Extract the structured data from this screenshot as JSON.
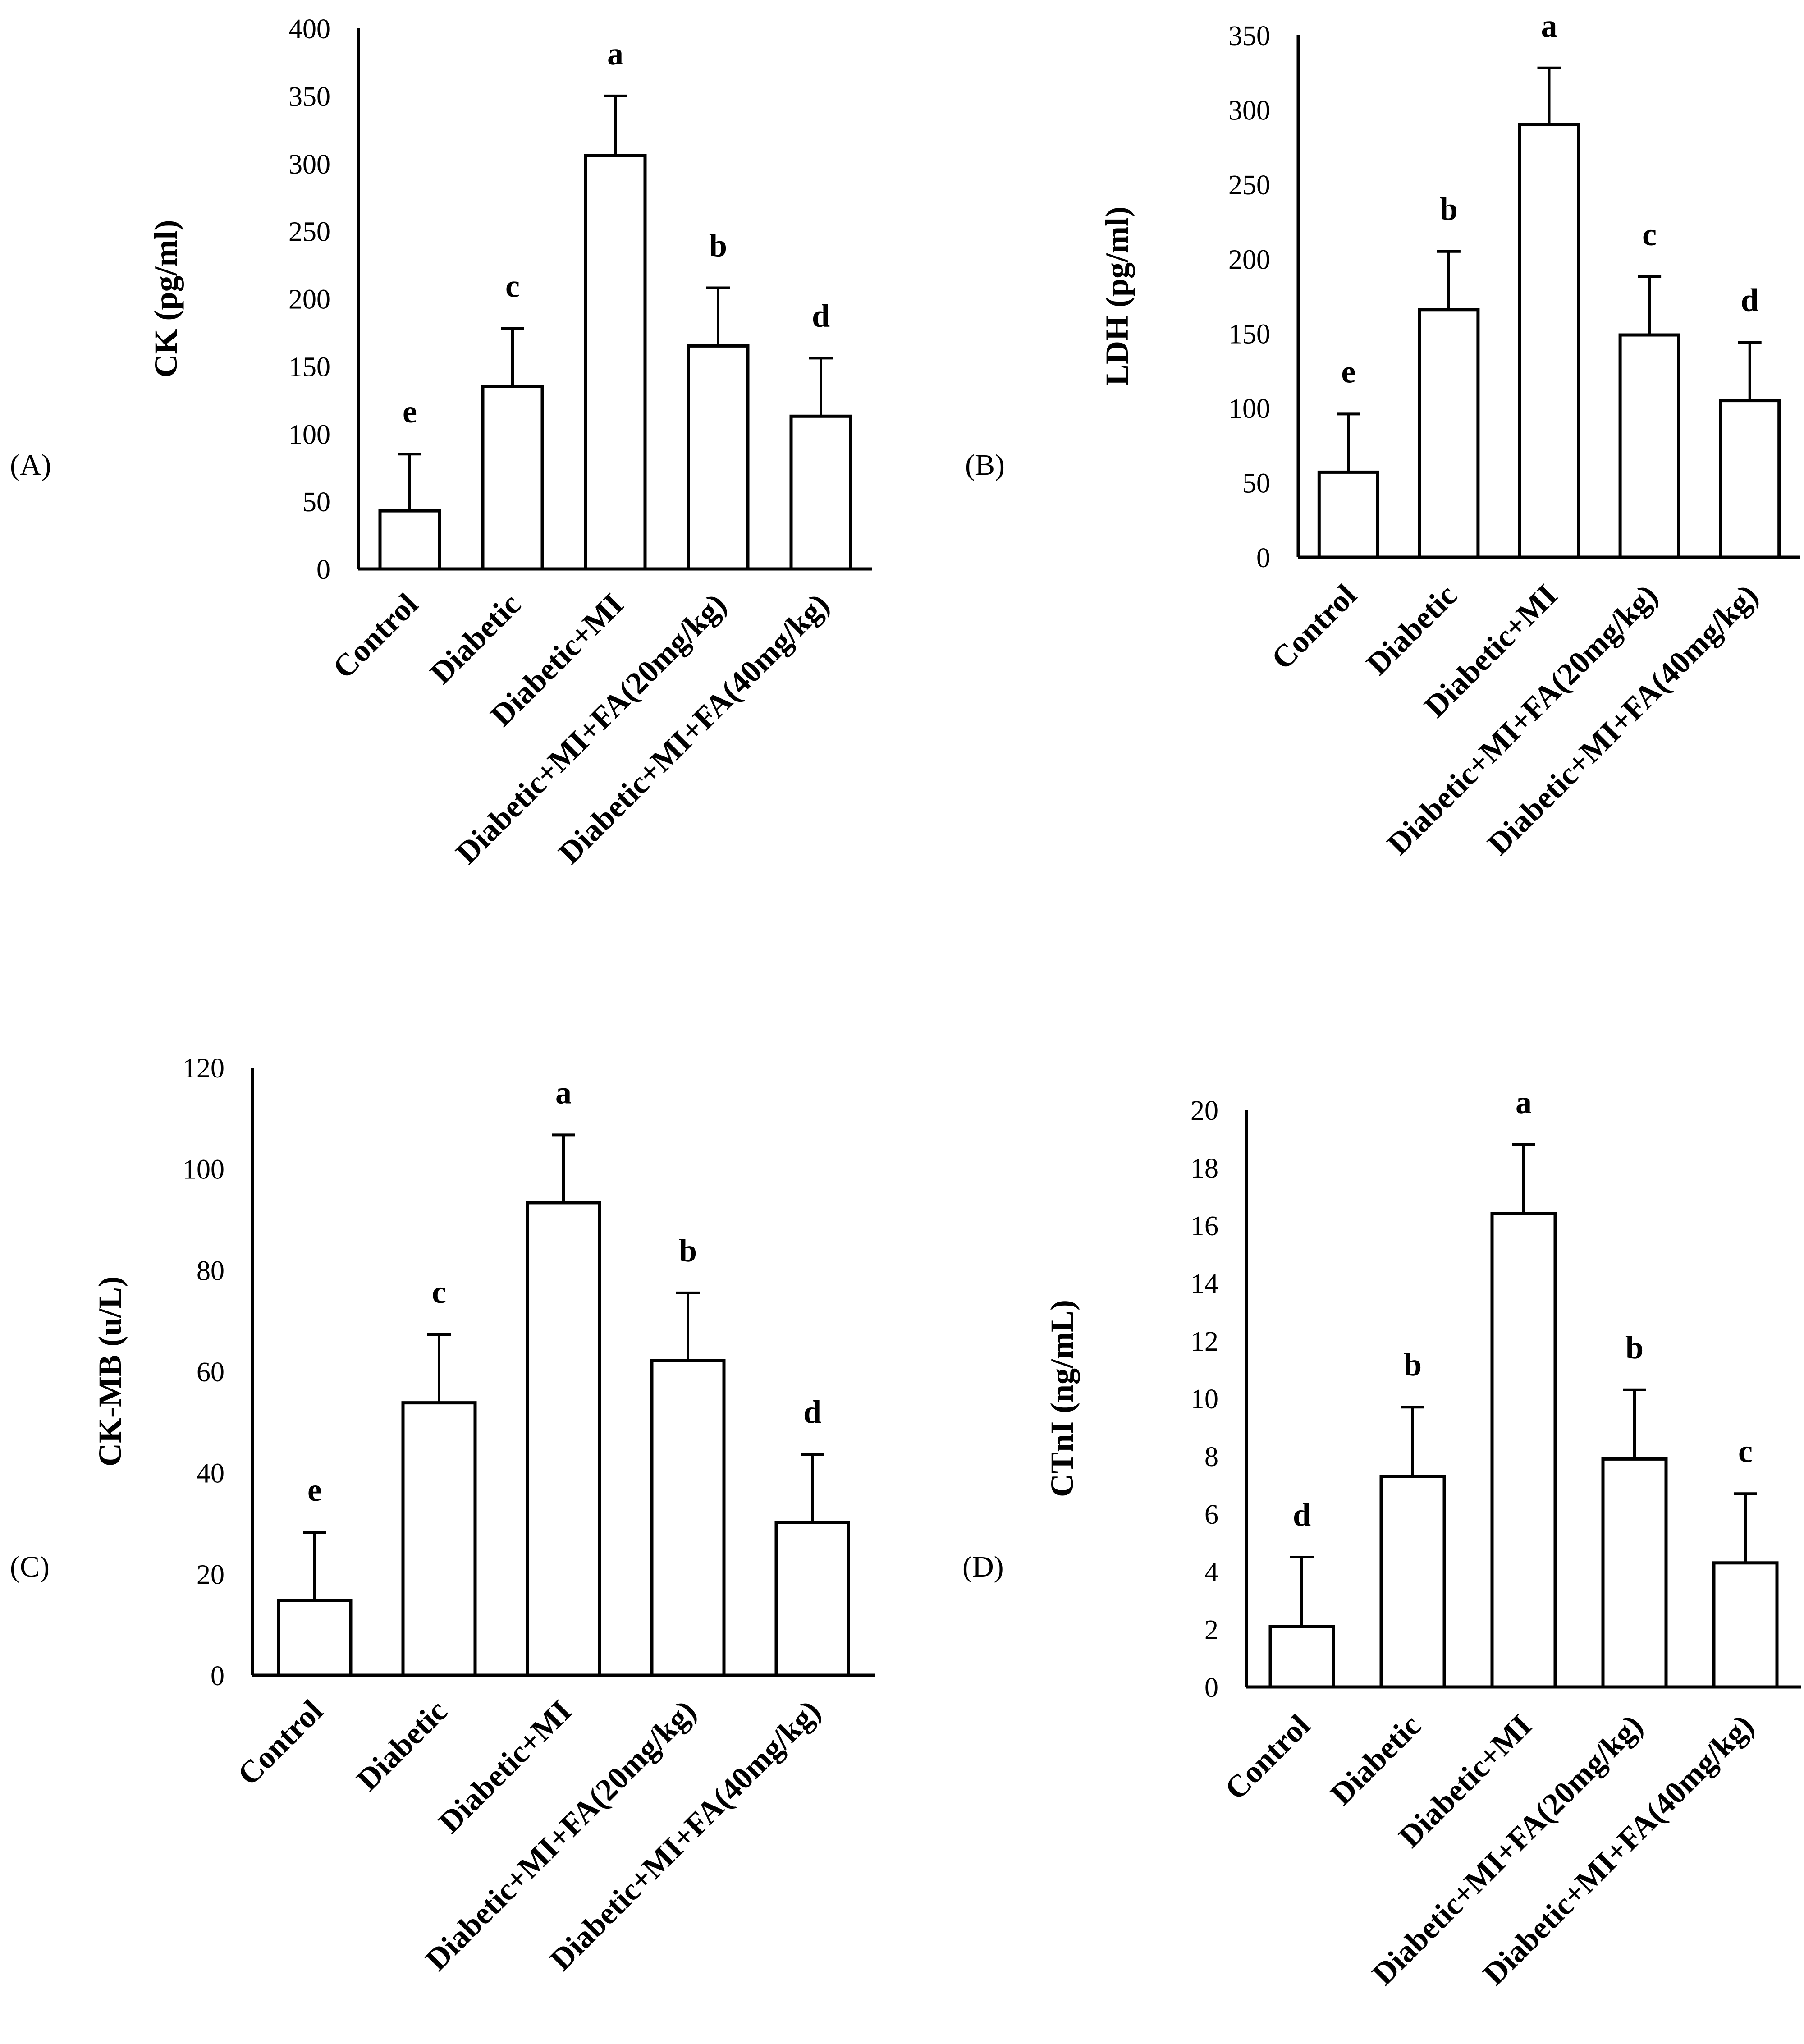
{
  "chart_data": [
    {
      "type": "bar",
      "panel": "(A)",
      "ylabel": "CK (pg/ml)",
      "ylim": [
        0,
        400
      ],
      "yticks": [
        "0",
        "50",
        "100",
        "150",
        "200",
        "250",
        "300",
        "350",
        "400"
      ],
      "categories": [
        "Control",
        "Diabetic",
        "Diabetic+MI",
        "Diabetic+MI+FA(20mg/kg)",
        "Diabetic+MI+FA(40mg/kg)"
      ],
      "values": [
        43,
        135,
        306,
        165,
        113
      ],
      "errors": [
        42,
        43,
        44,
        43,
        43
      ],
      "letters": [
        "e",
        "c",
        "a",
        "b",
        "d"
      ]
    },
    {
      "type": "bar",
      "panel": "(B)",
      "ylabel": "LDH (pg/ml)",
      "ylim": [
        0,
        350
      ],
      "yticks": [
        "0",
        "50",
        "100",
        "150",
        "200",
        "250",
        "300",
        "350"
      ],
      "categories": [
        "Control",
        "Diabetic",
        "Diabetic+MI",
        "Diabetic+MI+FA(20mg/kg)",
        "Diabetic+MI+FA(40mg/kg)"
      ],
      "values": [
        57,
        166,
        290,
        149,
        105
      ],
      "errors": [
        39,
        39,
        38,
        39,
        39
      ],
      "letters": [
        "e",
        "b",
        "a",
        "c",
        "d"
      ]
    },
    {
      "type": "bar",
      "panel": "(C)",
      "ylabel": "CK-MB (u/L)",
      "ylim": [
        0,
        120
      ],
      "yticks": [
        "0",
        "20",
        "40",
        "60",
        "80",
        "100",
        "120"
      ],
      "categories": [
        "Control",
        "Diabetic",
        "Diabetic+MI",
        "Diabetic+MI+FA(20mg/kg)",
        "Diabetic+MI+FA(40mg/kg)"
      ],
      "values": [
        14.8,
        53.8,
        93.3,
        62.1,
        30.2
      ],
      "errors": [
        13.4,
        13.5,
        13.4,
        13.4,
        13.4
      ],
      "letters": [
        "e",
        "c",
        "a",
        "b",
        "d"
      ]
    },
    {
      "type": "bar",
      "panel": "(D)",
      "ylabel": "CTnI (ng/mL)",
      "ylim": [
        0,
        20
      ],
      "yticks": [
        "0",
        "2",
        "4",
        "6",
        "8",
        "10",
        "12",
        "14",
        "16",
        "18",
        "20"
      ],
      "categories": [
        "Control",
        "Diabetic",
        "Diabetic+MI",
        "Diabetic+MI+FA(20mg/kg)",
        "Diabetic+MI+FA(40mg/kg)"
      ],
      "values": [
        2.1,
        7.3,
        16.4,
        7.9,
        4.3
      ],
      "errors": [
        2.4,
        2.4,
        2.4,
        2.4,
        2.4
      ],
      "letters": [
        "d",
        "b",
        "a",
        "b",
        "c"
      ]
    }
  ]
}
